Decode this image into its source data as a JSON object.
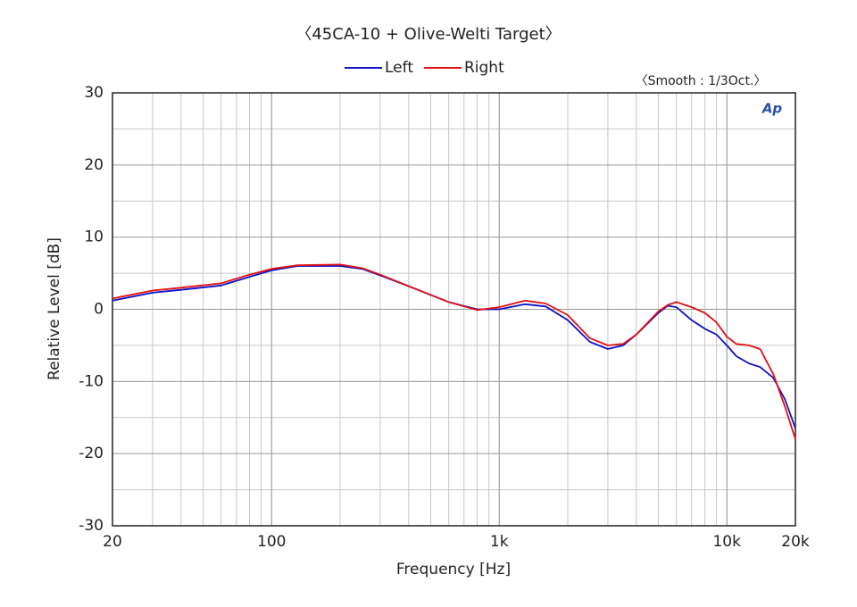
{
  "chart_data": {
    "type": "line",
    "title": "〈45CA-10 + Olive-Welti Target〉",
    "annotation": "〈Smooth : 1/3Oct.〉",
    "logo": "Ap",
    "x_label": "Frequency [Hz]",
    "y_label": "Relative Level [dB]",
    "x_log": true,
    "grid": true,
    "legend": "top",
    "xlim": [
      20,
      20000
    ],
    "xticks": [
      20,
      100,
      {
        "value": 1000,
        "label": "1k"
      },
      {
        "value": 10000,
        "label": "10k"
      },
      {
        "value": 20000,
        "label": "20k"
      }
    ],
    "ylim": [
      -30,
      30
    ],
    "yticks": [
      30,
      20,
      10,
      0,
      -10,
      -20,
      -30
    ],
    "x": [
      20,
      30,
      40,
      60,
      80,
      100,
      130,
      200,
      250,
      300,
      400,
      600,
      800,
      1000,
      1300,
      1600,
      2000,
      2500,
      3000,
      3500,
      4000,
      5000,
      5500,
      6000,
      7000,
      8000,
      9000,
      10000,
      11000,
      12500,
      14000,
      16000,
      18000,
      20000
    ],
    "series": [
      {
        "name": "Left",
        "color": "#1010c8",
        "values": [
          1.2,
          2.3,
          2.7,
          3.3,
          4.5,
          5.4,
          6.0,
          6.0,
          5.6,
          4.7,
          3.2,
          1.0,
          0.0,
          0.0,
          0.7,
          0.4,
          -1.5,
          -4.5,
          -5.5,
          -5.0,
          -3.5,
          -0.5,
          0.5,
          0.3,
          -1.5,
          -2.7,
          -3.5,
          -5.0,
          -6.5,
          -7.5,
          -8.0,
          -9.5,
          -12.5,
          -16.5
        ]
      },
      {
        "name": "Right",
        "color": "#e01010",
        "values": [
          1.5,
          2.6,
          3.0,
          3.6,
          4.8,
          5.6,
          6.1,
          6.2,
          5.7,
          4.8,
          3.2,
          1.0,
          -0.1,
          0.3,
          1.2,
          0.8,
          -0.8,
          -4.0,
          -5.0,
          -4.8,
          -3.5,
          -0.3,
          0.6,
          1.0,
          0.3,
          -0.5,
          -1.8,
          -3.8,
          -4.8,
          -5.0,
          -5.5,
          -9.0,
          -13.5,
          -18.0
        ]
      }
    ]
  }
}
